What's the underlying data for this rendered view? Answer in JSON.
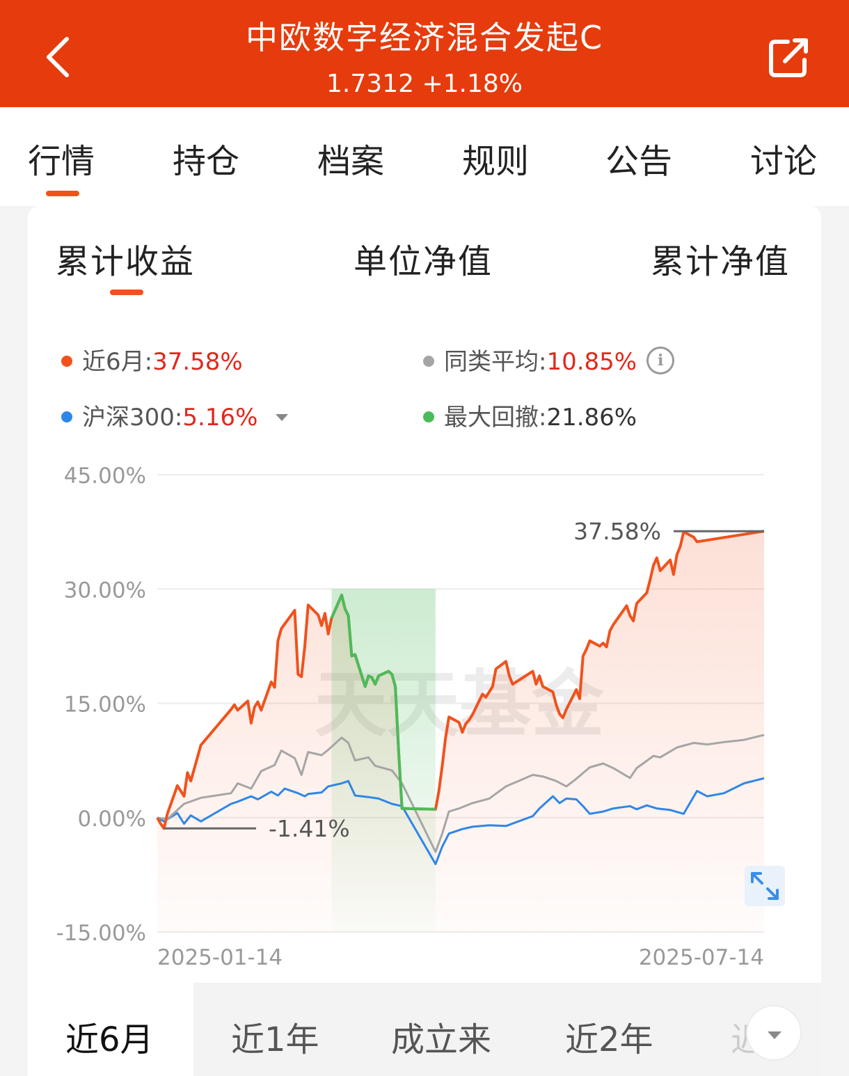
{
  "header": {
    "title": "中欧数字经济混合发起C",
    "subtitle": "1.7312 +1.18%",
    "bg_color": "#e63b0c"
  },
  "tabs": [
    "行情",
    "持仓",
    "档案",
    "规则",
    "公告",
    "讨论"
  ],
  "subtabs": [
    "累计收益",
    "单位净值",
    "累计净值"
  ],
  "legend": {
    "item1": {
      "label": "近6月:",
      "value": "37.58%",
      "color": "#f0521d"
    },
    "item2": {
      "label": "同类平均:",
      "value": "10.85%",
      "color": "#a5a5a5"
    },
    "item3": {
      "label": "沪深300:",
      "value": "5.16%",
      "color": "#2f86e6"
    },
    "item4": {
      "label": "最大回撤:",
      "value": "21.86%",
      "color": "#4cbb5a"
    }
  },
  "watermark": "天天基金",
  "periods": [
    "近6月",
    "近1年",
    "成立来",
    "近2年",
    "近"
  ],
  "chart_data": {
    "type": "line",
    "ylim": [
      -15,
      45
    ],
    "y_ticks": [
      "45.00%",
      "30.00%",
      "15.00%",
      "0.00%",
      "-15.00%"
    ],
    "x_tick_labels": [
      "2025-01-14",
      "2025-07-14"
    ],
    "x_range": [
      "2025-01-14",
      "2025-07-14"
    ],
    "annotations": {
      "max": "37.58%",
      "min": "-1.41%"
    },
    "drawdown": {
      "start": "2025-03-07",
      "end": "2025-04-07",
      "color": "#4cbb5a"
    },
    "series": [
      {
        "name": "近6月",
        "color": "#f0521d",
        "points": [
          [
            "2025-01-14",
            0
          ],
          [
            "2025-01-15",
            -0.8
          ],
          [
            "2025-01-16",
            -1.41
          ],
          [
            "2025-01-17",
            0.5
          ],
          [
            "2025-01-20",
            4.2
          ],
          [
            "2025-01-21",
            3.5
          ],
          [
            "2025-01-22",
            2.8
          ],
          [
            "2025-01-23",
            5.9
          ],
          [
            "2025-01-24",
            4.8
          ],
          [
            "2025-01-27",
            9.5
          ],
          [
            "2025-02-05",
            14.2
          ],
          [
            "2025-02-06",
            14.8
          ],
          [
            "2025-02-07",
            14.1
          ],
          [
            "2025-02-10",
            15.3
          ],
          [
            "2025-02-11",
            12.4
          ],
          [
            "2025-02-12",
            14.5
          ],
          [
            "2025-02-13",
            15.2
          ],
          [
            "2025-02-14",
            14.1
          ],
          [
            "2025-02-17",
            17.8
          ],
          [
            "2025-02-18",
            17.1
          ],
          [
            "2025-02-19",
            23.2
          ],
          [
            "2025-02-20",
            24.8
          ],
          [
            "2025-02-21",
            25.4
          ],
          [
            "2025-02-24",
            27.2
          ],
          [
            "2025-02-25",
            18.8
          ],
          [
            "2025-02-26",
            18.5
          ],
          [
            "2025-02-27",
            22.5
          ],
          [
            "2025-02-28",
            27.9
          ],
          [
            "2025-03-03",
            26.6
          ],
          [
            "2025-03-04",
            25.2
          ],
          [
            "2025-03-05",
            26.8
          ],
          [
            "2025-03-06",
            24.1
          ],
          [
            "2025-03-07",
            26.2
          ],
          [
            "2025-03-10",
            29.2
          ],
          [
            "2025-03-11",
            27.4
          ],
          [
            "2025-03-12",
            26.5
          ],
          [
            "2025-03-13",
            21.2
          ],
          [
            "2025-03-14",
            21.4
          ],
          [
            "2025-03-17",
            17.2
          ],
          [
            "2025-03-18",
            18.6
          ],
          [
            "2025-03-19",
            18.4
          ],
          [
            "2025-03-20",
            17.5
          ],
          [
            "2025-03-21",
            18.6
          ],
          [
            "2025-03-24",
            19.2
          ],
          [
            "2025-03-25",
            18.8
          ],
          [
            "2025-03-26",
            17.2
          ],
          [
            "2025-03-27",
            8.6
          ],
          [
            "2025-03-28",
            1.2
          ],
          [
            "2025-04-07",
            1.1
          ],
          [
            "2025-04-08",
            3.5
          ],
          [
            "2025-04-09",
            6.8
          ],
          [
            "2025-04-10",
            10.5
          ],
          [
            "2025-04-11",
            13.2
          ],
          [
            "2025-04-14",
            12.5
          ],
          [
            "2025-04-15",
            11.2
          ],
          [
            "2025-04-16",
            12.3
          ],
          [
            "2025-04-17",
            12.8
          ],
          [
            "2025-04-18",
            13.5
          ],
          [
            "2025-04-21",
            16.2
          ],
          [
            "2025-04-22",
            15.8
          ],
          [
            "2025-04-23",
            16.5
          ],
          [
            "2025-04-24",
            17.2
          ],
          [
            "2025-04-25",
            19.5
          ],
          [
            "2025-04-28",
            20.5
          ],
          [
            "2025-04-29",
            18.6
          ],
          [
            "2025-04-30",
            17.5
          ],
          [
            "2025-05-06",
            19.2
          ],
          [
            "2025-05-07",
            17.5
          ],
          [
            "2025-05-08",
            18.6
          ],
          [
            "2025-05-09",
            17.2
          ],
          [
            "2025-05-12",
            16.5
          ],
          [
            "2025-05-13",
            14.8
          ],
          [
            "2025-05-14",
            13.6
          ],
          [
            "2025-05-15",
            13.1
          ],
          [
            "2025-05-16",
            14.2
          ],
          [
            "2025-05-19",
            16.8
          ],
          [
            "2025-05-20",
            15.6
          ],
          [
            "2025-05-21",
            21.2
          ],
          [
            "2025-05-22",
            22.1
          ],
          [
            "2025-05-23",
            23.2
          ],
          [
            "2025-05-26",
            22.5
          ],
          [
            "2025-05-27",
            22.9
          ],
          [
            "2025-05-28",
            22.4
          ],
          [
            "2025-05-29",
            24.5
          ],
          [
            "2025-05-30",
            25.3
          ],
          [
            "2025-06-03",
            27.8
          ],
          [
            "2025-06-04",
            26.5
          ],
          [
            "2025-06-05",
            25.8
          ],
          [
            "2025-06-06",
            28.1
          ],
          [
            "2025-06-09",
            29.5
          ],
          [
            "2025-06-10",
            31.2
          ],
          [
            "2025-06-11",
            33.1
          ],
          [
            "2025-06-12",
            34.1
          ],
          [
            "2025-06-13",
            32.4
          ],
          [
            "2025-06-16",
            33.8
          ],
          [
            "2025-06-17",
            31.9
          ],
          [
            "2025-06-18",
            34.5
          ],
          [
            "2025-06-19",
            35.6
          ],
          [
            "2025-06-20",
            37.5
          ],
          [
            "2025-06-23",
            36.8
          ],
          [
            "2025-06-24",
            36.2
          ],
          [
            "2025-07-14",
            37.58
          ]
        ]
      },
      {
        "name": "同类平均",
        "color": "#a5a5a5",
        "points": [
          [
            "2025-01-14",
            0
          ],
          [
            "2025-01-17",
            -0.2
          ],
          [
            "2025-01-22",
            1.8
          ],
          [
            "2025-01-27",
            2.6
          ],
          [
            "2025-02-05",
            3.2
          ],
          [
            "2025-02-07",
            4.5
          ],
          [
            "2025-02-11",
            3.8
          ],
          [
            "2025-02-14",
            6.1
          ],
          [
            "2025-02-18",
            6.9
          ],
          [
            "2025-02-20",
            8.8
          ],
          [
            "2025-02-24",
            7.8
          ],
          [
            "2025-02-26",
            5.6
          ],
          [
            "2025-02-28",
            8.6
          ],
          [
            "2025-03-04",
            8.2
          ],
          [
            "2025-03-06",
            8.9
          ],
          [
            "2025-03-10",
            10.5
          ],
          [
            "2025-03-12",
            9.8
          ],
          [
            "2025-03-14",
            7.5
          ],
          [
            "2025-03-18",
            7.9
          ],
          [
            "2025-03-20",
            6.8
          ],
          [
            "2025-03-25",
            6.2
          ],
          [
            "2025-03-28",
            4.5
          ],
          [
            "2025-04-07",
            -4.5
          ],
          [
            "2025-04-09",
            -2.1
          ],
          [
            "2025-04-11",
            0.8
          ],
          [
            "2025-04-14",
            1.2
          ],
          [
            "2025-04-18",
            1.9
          ],
          [
            "2025-04-23",
            2.5
          ],
          [
            "2025-04-28",
            4.1
          ],
          [
            "2025-05-06",
            5.6
          ],
          [
            "2025-05-09",
            5.4
          ],
          [
            "2025-05-13",
            4.8
          ],
          [
            "2025-05-16",
            4.1
          ],
          [
            "2025-05-19",
            5.1
          ],
          [
            "2025-05-23",
            6.6
          ],
          [
            "2025-05-27",
            7.1
          ],
          [
            "2025-05-30",
            6.5
          ],
          [
            "2025-06-04",
            5.2
          ],
          [
            "2025-06-06",
            6.5
          ],
          [
            "2025-06-11",
            8.1
          ],
          [
            "2025-06-13",
            7.9
          ],
          [
            "2025-06-18",
            9.2
          ],
          [
            "2025-06-23",
            9.8
          ],
          [
            "2025-06-27",
            9.6
          ],
          [
            "2025-07-02",
            9.9
          ],
          [
            "2025-07-08",
            10.2
          ],
          [
            "2025-07-14",
            10.85
          ]
        ]
      },
      {
        "name": "沪深300",
        "color": "#2f86e6",
        "points": [
          [
            "2025-01-14",
            0
          ],
          [
            "2025-01-16",
            -0.5
          ],
          [
            "2025-01-20",
            0.6
          ],
          [
            "2025-01-22",
            -0.8
          ],
          [
            "2025-01-24",
            0.3
          ],
          [
            "2025-01-27",
            -0.5
          ],
          [
            "2025-02-05",
            1.8
          ],
          [
            "2025-02-07",
            2.1
          ],
          [
            "2025-02-11",
            2.8
          ],
          [
            "2025-02-13",
            2.4
          ],
          [
            "2025-02-17",
            3.4
          ],
          [
            "2025-02-19",
            2.9
          ],
          [
            "2025-02-21",
            3.8
          ],
          [
            "2025-02-25",
            3.2
          ],
          [
            "2025-02-27",
            2.8
          ],
          [
            "2025-02-28",
            3.1
          ],
          [
            "2025-03-04",
            3.3
          ],
          [
            "2025-03-06",
            4.1
          ],
          [
            "2025-03-10",
            4.5
          ],
          [
            "2025-03-12",
            4.8
          ],
          [
            "2025-03-14",
            2.9
          ],
          [
            "2025-03-18",
            2.7
          ],
          [
            "2025-03-21",
            2.5
          ],
          [
            "2025-03-25",
            1.8
          ],
          [
            "2025-03-28",
            1.5
          ],
          [
            "2025-04-07",
            -6.1
          ],
          [
            "2025-04-09",
            -3.8
          ],
          [
            "2025-04-11",
            -2.1
          ],
          [
            "2025-04-15",
            -1.5
          ],
          [
            "2025-04-18",
            -1.2
          ],
          [
            "2025-04-23",
            -1.0
          ],
          [
            "2025-04-28",
            -1.1
          ],
          [
            "2025-05-06",
            0.2
          ],
          [
            "2025-05-08",
            1.2
          ],
          [
            "2025-05-12",
            2.8
          ],
          [
            "2025-05-14",
            1.9
          ],
          [
            "2025-05-16",
            2.5
          ],
          [
            "2025-05-19",
            2.4
          ],
          [
            "2025-05-21",
            1.5
          ],
          [
            "2025-05-23",
            0.5
          ],
          [
            "2025-05-27",
            0.8
          ],
          [
            "2025-05-30",
            1.2
          ],
          [
            "2025-06-04",
            1.5
          ],
          [
            "2025-06-06",
            1.1
          ],
          [
            "2025-06-09",
            1.6
          ],
          [
            "2025-06-12",
            1.2
          ],
          [
            "2025-06-16",
            1.0
          ],
          [
            "2025-06-20",
            0.5
          ],
          [
            "2025-06-24",
            3.5
          ],
          [
            "2025-06-27",
            2.8
          ],
          [
            "2025-07-02",
            3.2
          ],
          [
            "2025-07-08",
            4.5
          ],
          [
            "2025-07-14",
            5.16
          ]
        ]
      }
    ]
  }
}
